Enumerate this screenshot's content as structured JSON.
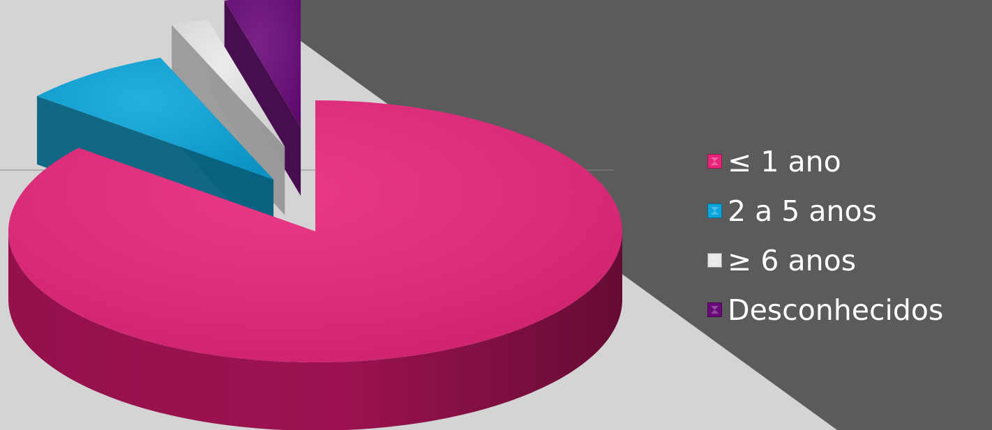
{
  "chart_data": {
    "type": "pie",
    "style": "3d-exploded",
    "title": "",
    "categories": [
      "≤ 1 ano",
      "2 a 5 anos",
      "≥ 6 anos",
      "Desconhecidos"
    ],
    "values": [
      86,
      8,
      2,
      4
    ],
    "unit": "%",
    "colors": [
      "#e8247a",
      "#0aa6dc",
      "#e9e9e9",
      "#6a0a7a"
    ],
    "side_colors": [
      "#9c1250",
      "#06627f",
      "#9a9a9a",
      "#3e0347"
    ],
    "legend_position": "right",
    "exploded_slices": [
      "2 a 5 anos",
      "≥ 6 anos",
      "Desconhecidos"
    ],
    "data_labels": false
  },
  "background": {
    "light": "#d4d4d4",
    "dark": "#5b5b5b"
  }
}
